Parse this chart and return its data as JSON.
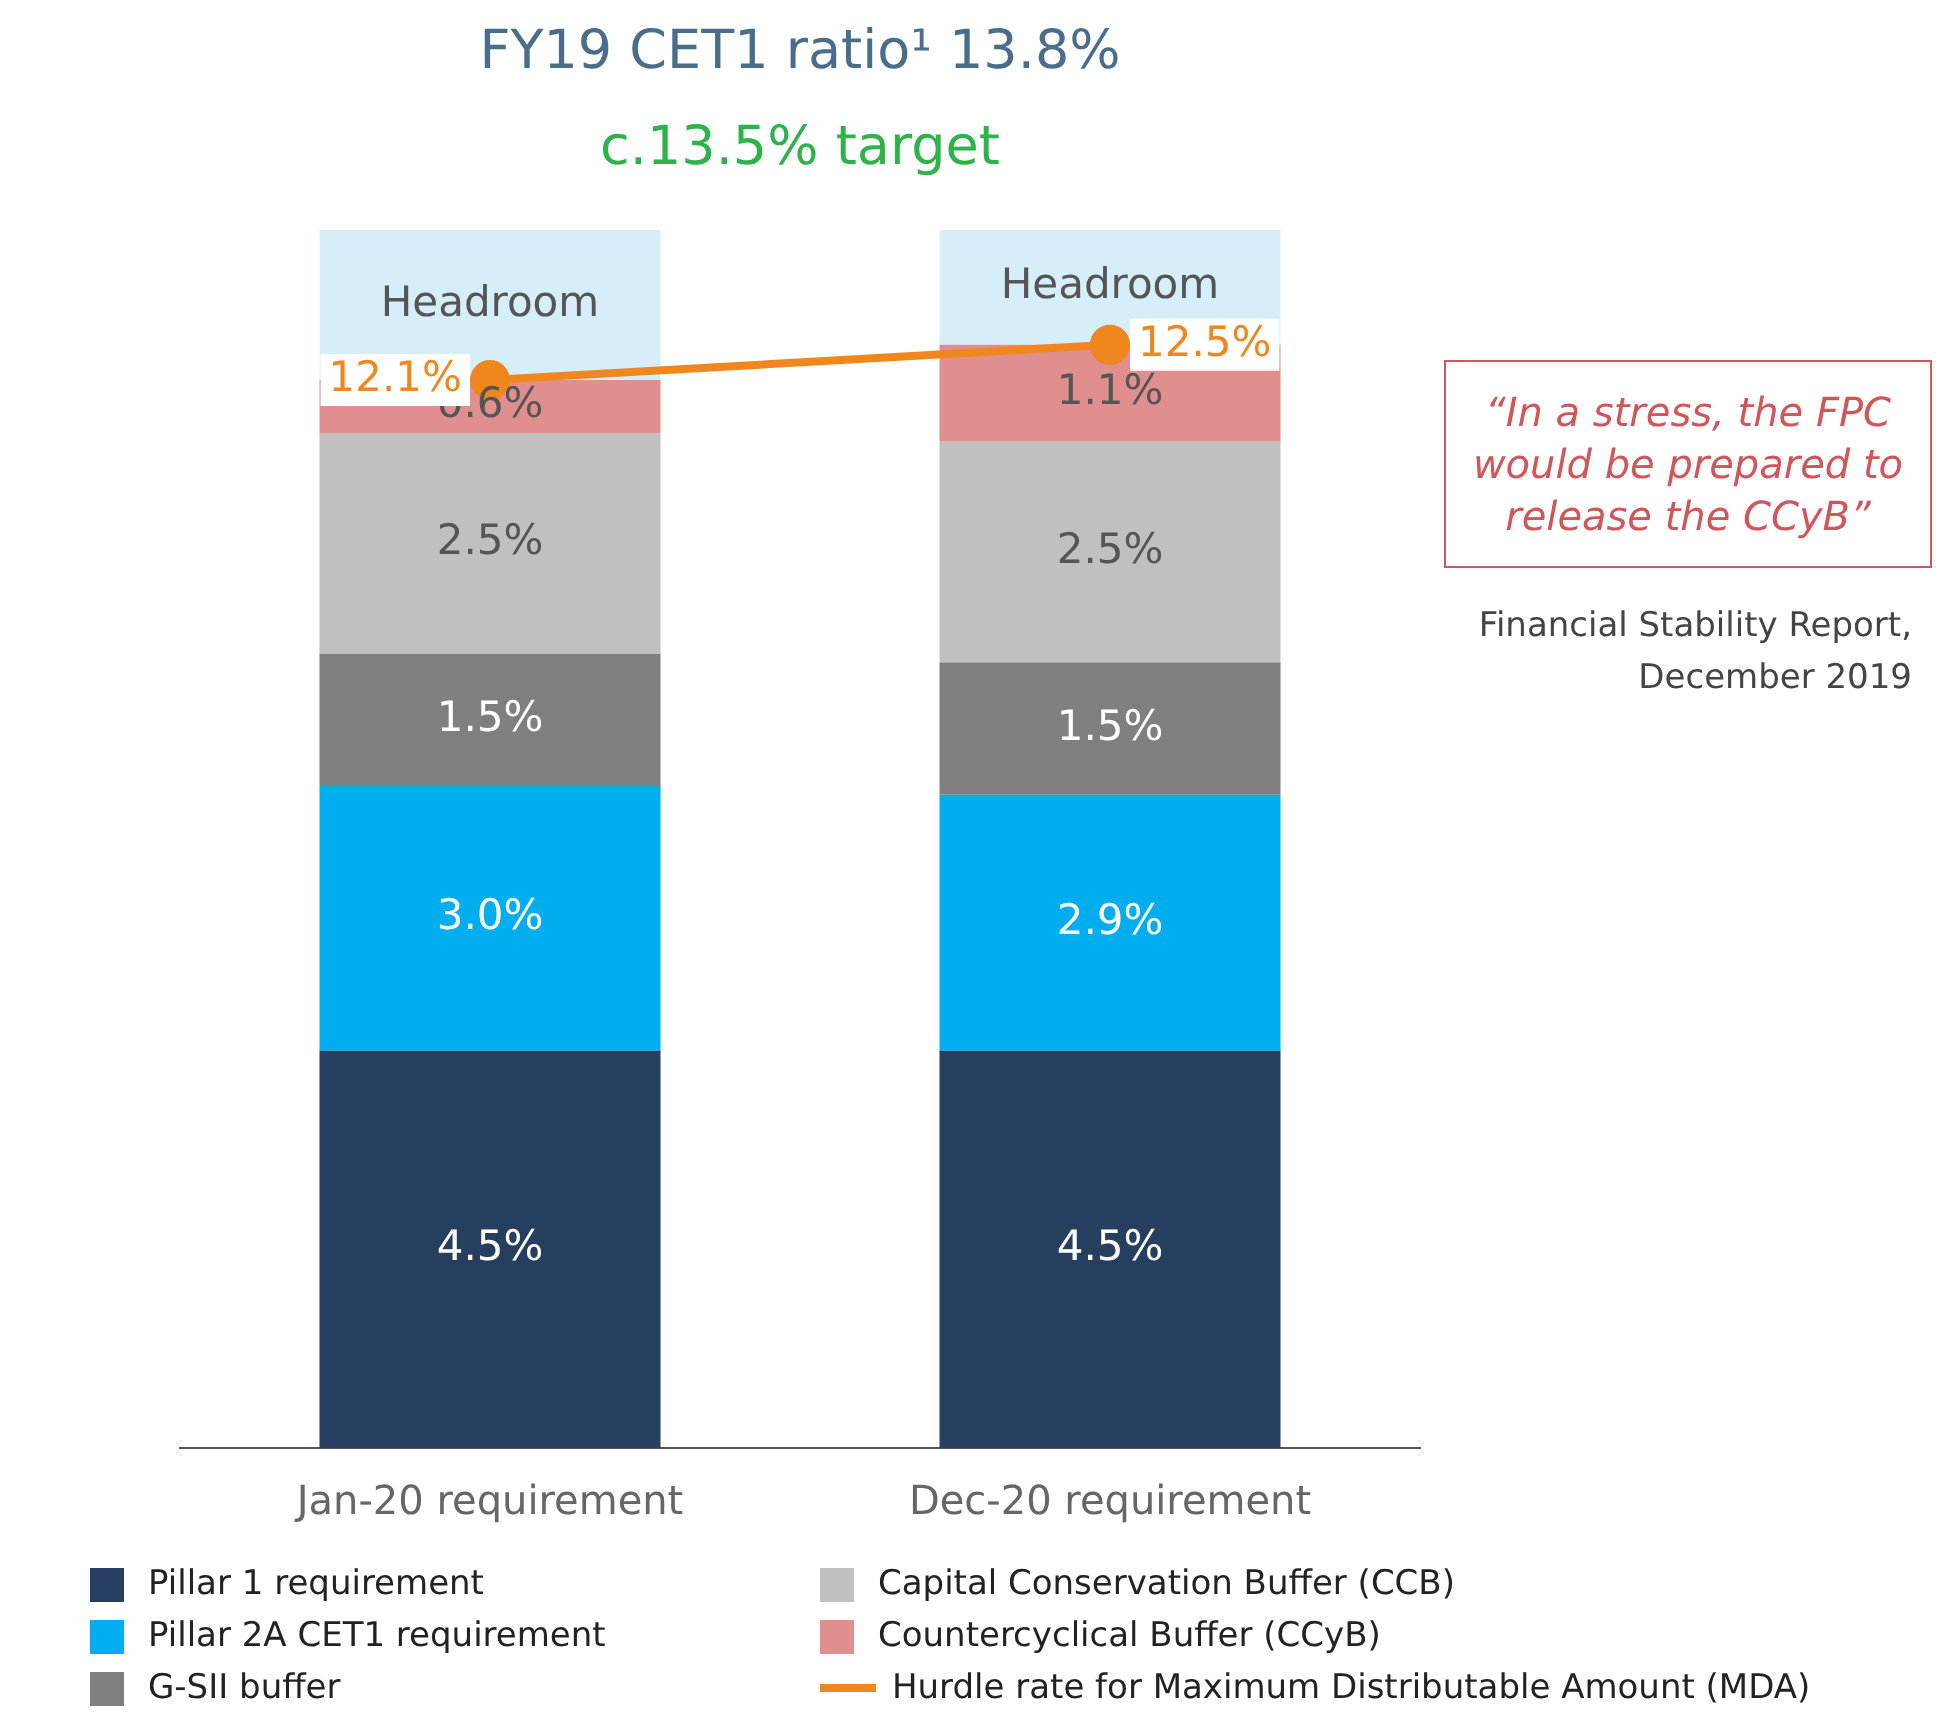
{
  "chart_data": {
    "type": "bar",
    "stacked": true,
    "title": "FY19 CET1 ratio¹ 13.8%",
    "subtitle": "c.13.5% target",
    "categories": [
      "Jan-20 requirement",
      "Dec-20 requirement"
    ],
    "series": [
      {
        "name": "Pillar 1 requirement",
        "color": "#263f5e",
        "values": [
          4.5,
          4.5
        ],
        "value_labels": [
          "4.5%",
          "4.5%"
        ]
      },
      {
        "name": "Pillar 2A CET1 requirement",
        "color": "#00aeef",
        "values": [
          3.0,
          2.9
        ],
        "value_labels": [
          "3.0%",
          "2.9%"
        ]
      },
      {
        "name": "G-SII buffer",
        "color": "#7f7f7f",
        "values": [
          1.5,
          1.5
        ],
        "value_labels": [
          "1.5%",
          "1.5%"
        ]
      },
      {
        "name": "Capital Conservation Buffer (CCB)",
        "color": "#c0c0c0",
        "values": [
          2.5,
          2.5
        ],
        "value_labels": [
          "2.5%",
          "2.5%"
        ]
      },
      {
        "name": "Countercyclical Buffer (CCyB)",
        "color": "#e08e8e",
        "values": [
          0.6,
          1.1
        ],
        "value_labels": [
          "0.6%",
          "1.1%"
        ]
      },
      {
        "color": "#d6eefa",
        "values": [
          1.7,
          1.3
        ],
        "value_labels": [
          "Headroom",
          "Headroom"
        ]
      },
      {
        "name": "Hurdle rate for Maximum Distributable Amount (MDA)",
        "type": "line",
        "color": "#f0861e",
        "values": [
          12.1,
          12.5
        ],
        "value_labels": [
          "12.1%",
          "12.5%"
        ],
        "marker": "circle"
      }
    ],
    "annotations": [
      "“In a stress, the FPC would be prepared to release the CCyB”",
      "Financial Stability Report, December 2019"
    ],
    "legend": "bottom"
  }
}
